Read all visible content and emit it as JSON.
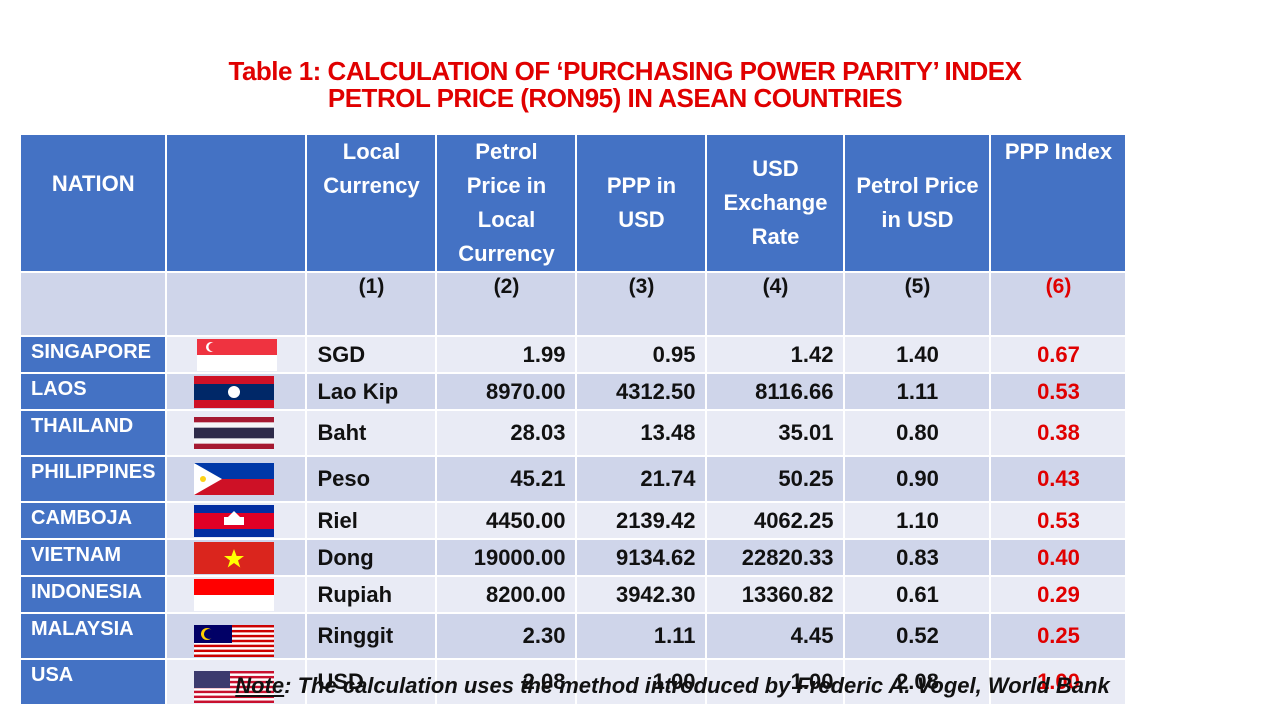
{
  "title": [
    "Table 1: CALCULATION OF ‘PURCHASING POWER PARITY’ INDEX",
    "PETROL PRICE (RON95) IN ASEAN COUNTRIES"
  ],
  "table": {
    "headers": [
      "NATION",
      "Local Currency",
      "Petrol Price in Local Currency",
      "PPP in USD",
      "USD Exchange Rate",
      "Petrol Price in USD",
      "PPP Index"
    ],
    "column_numbers": [
      "(1)",
      "(2)",
      "(3)",
      "(4)",
      "(5)",
      "(6)"
    ],
    "rows": [
      [
        "SINGAPORE",
        "SGD",
        "1.99",
        "0.95",
        "1.42",
        "1.40",
        "0.67"
      ],
      [
        "LAOS",
        "Lao Kip",
        "8970.00",
        "4312.50",
        "8116.66",
        "1.11",
        "0.53"
      ],
      [
        "THAILAND",
        "Baht",
        "28.03",
        "13.48",
        "35.01",
        "0.80",
        "0.38"
      ],
      [
        "PHILIPPINES",
        "Peso",
        "45.21",
        "21.74",
        "50.25",
        "0.90",
        "0.43"
      ],
      [
        "CAMBOJA",
        "Riel",
        "4450.00",
        "2139.42",
        "4062.25",
        "1.10",
        "0.53"
      ],
      [
        "VIETNAM",
        "Dong",
        "19000.00",
        "9134.62",
        "22820.33",
        "0.83",
        "0.40"
      ],
      [
        "INDONESIA",
        "Rupiah",
        "8200.00",
        "3942.30",
        "13360.82",
        "0.61",
        "0.29"
      ],
      [
        "MALAYSIA",
        "Ringgit",
        "2.30",
        "1.11",
        "4.45",
        "0.52",
        "0.25"
      ],
      [
        "USA",
        "USD",
        "2.08",
        "1.00",
        "1.00",
        "2.08",
        "1.00"
      ]
    ]
  },
  "note": {
    "label": "Note",
    "text": ": The calculation uses the method introduced by  Frederic A. Vogel, World Bank"
  }
}
